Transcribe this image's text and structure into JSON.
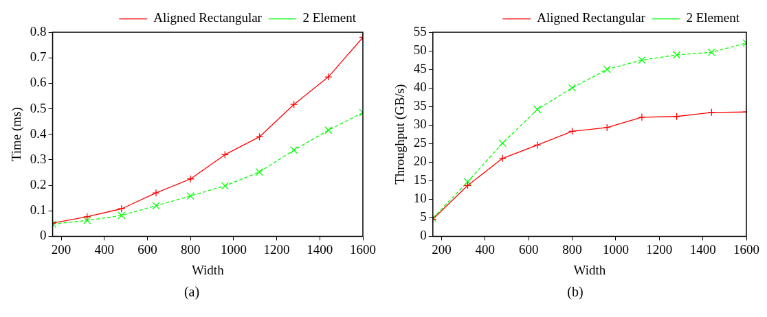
{
  "chart_data": [
    {
      "type": "line",
      "xlabel": "Width",
      "ylabel": "Time (ms)",
      "x": [
        160,
        320,
        480,
        640,
        800,
        960,
        1120,
        1280,
        1440,
        1600
      ],
      "xlim": [
        160,
        1600
      ],
      "xticks": [
        200,
        400,
        600,
        800,
        1000,
        1200,
        1400,
        1600
      ],
      "ylim": [
        0,
        0.8
      ],
      "yticks": [
        0,
        0.1,
        0.2,
        0.3,
        0.4,
        0.5,
        0.6,
        0.7,
        0.8
      ],
      "grid": false,
      "legend": "top right",
      "marker": "cross",
      "annotations": [
        "(a)"
      ],
      "series": [
        {
          "name": "Aligned Rectangular",
          "color": "#ff0000",
          "line_style": "solid",
          "values": [
            0.052,
            0.077,
            0.108,
            0.17,
            0.225,
            0.32,
            0.39,
            0.517,
            0.625,
            0.78
          ]
        },
        {
          "name": "2 Element",
          "color": "#00ff00",
          "line_style": "dashed",
          "values": [
            0.048,
            0.062,
            0.082,
            0.12,
            0.158,
            0.198,
            0.252,
            0.338,
            0.416,
            0.485
          ]
        }
      ]
    },
    {
      "type": "line",
      "xlabel": "Width",
      "ylabel": "Throughput (GB/s)",
      "x": [
        160,
        320,
        480,
        640,
        800,
        960,
        1120,
        1280,
        1440,
        1600
      ],
      "xlim": [
        160,
        1600
      ],
      "xticks": [
        200,
        400,
        600,
        800,
        1000,
        1200,
        1400,
        1600
      ],
      "ylim": [
        0,
        55
      ],
      "yticks": [
        0,
        5,
        10,
        15,
        20,
        25,
        30,
        35,
        40,
        45,
        50,
        55
      ],
      "grid": false,
      "legend": "top right",
      "marker": "cross",
      "annotations": [
        "(b)"
      ],
      "series": [
        {
          "name": "Aligned Rectangular",
          "color": "#ff0000",
          "line_style": "solid",
          "values": [
            4.6,
            13.7,
            21,
            24.6,
            28.3,
            29.3,
            32.1,
            32.3,
            33.4,
            33.5
          ]
        },
        {
          "name": "2 Element",
          "color": "#00ff00",
          "line_style": "dashed",
          "values": [
            4.9,
            14.7,
            25.1,
            34.2,
            40,
            45,
            47.5,
            48.9,
            49.6,
            52.1
          ]
        }
      ]
    }
  ]
}
